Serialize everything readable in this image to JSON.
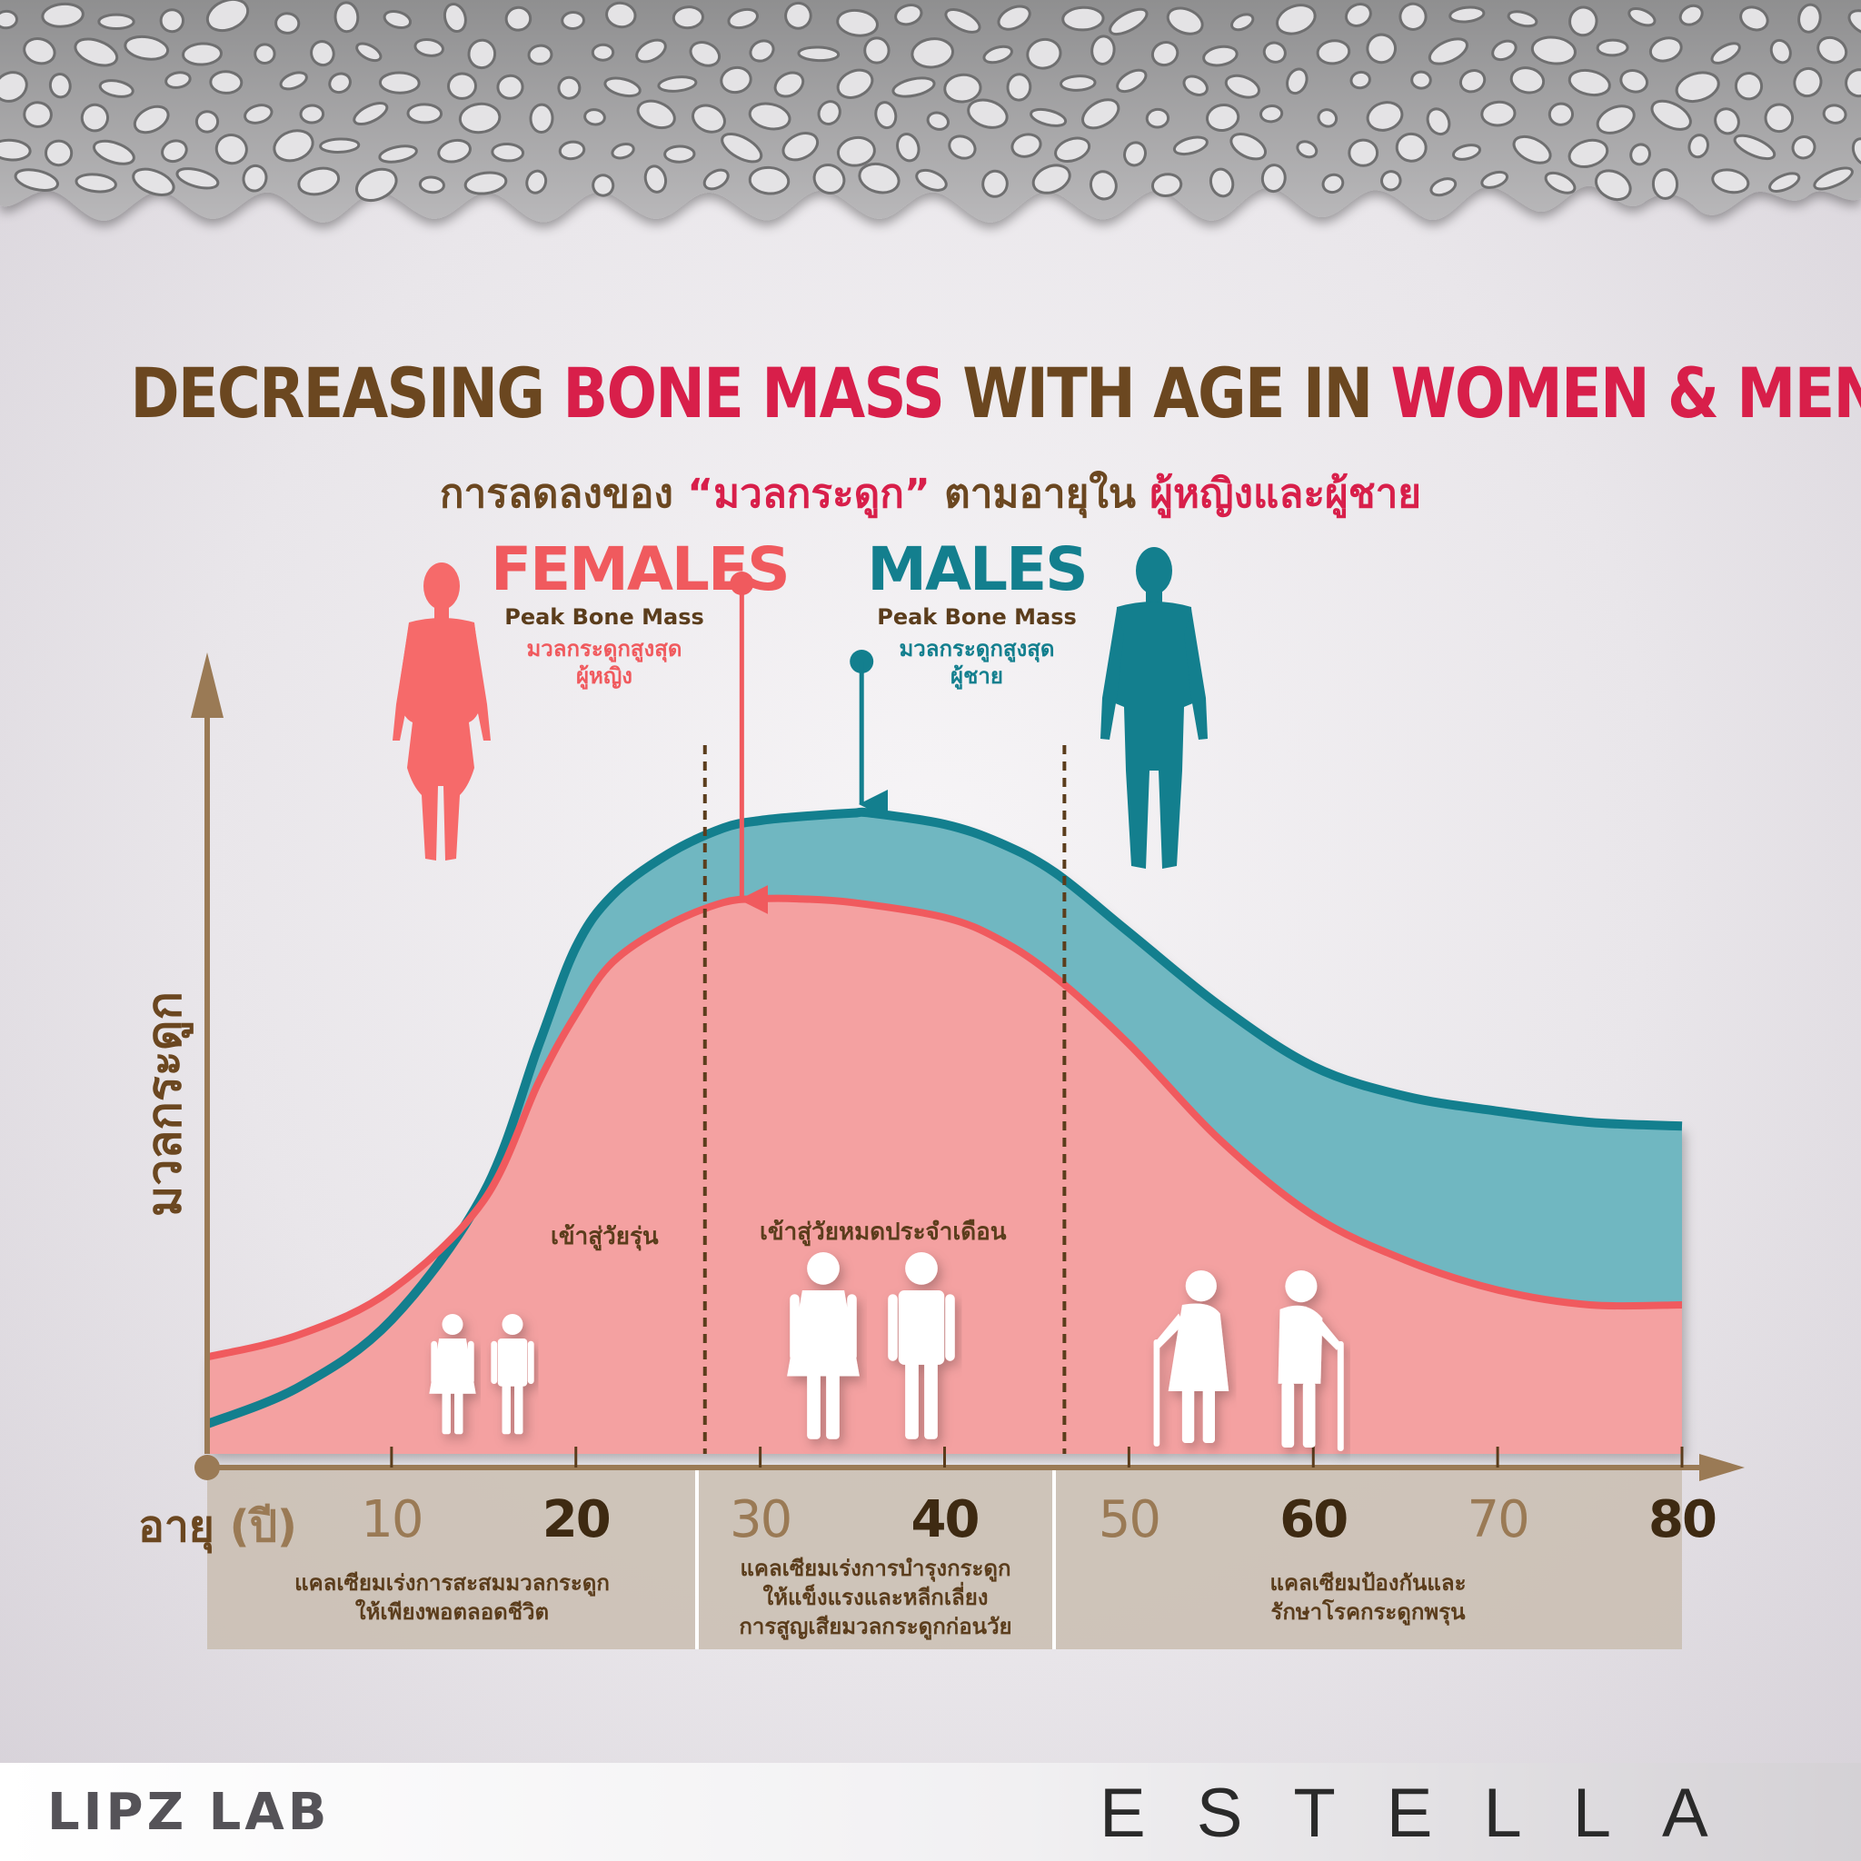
{
  "header": {
    "title_parts": [
      "DECREASING ",
      "BONE MASS",
      " WITH AGE IN ",
      "WOMEN & MEN"
    ],
    "subtitle_parts": [
      "การลดลงของ ",
      "“มวลกระดูก”",
      " ตามอายุใน ",
      "ผู้หญิงและผู้ชาย"
    ]
  },
  "females": {
    "heading": "FEMALES",
    "peak_label": "Peak Bone Mass",
    "thai_line1": "มวลกระดูกสูงสุด",
    "thai_line2": "ผู้หญิง"
  },
  "males": {
    "heading": "MALES",
    "peak_label": "Peak Bone Mass",
    "thai_line1": "มวลกระดูกสูงสุด",
    "thai_line2": "ผู้ชาย"
  },
  "stage_labels": {
    "puberty": "เข้าสู่วัยรุ่น",
    "menopause": "เข้าสู่วัยหมดประจำเดือน"
  },
  "bands": [
    {
      "line1": "แคลเซียมเร่งการสะสมมวลกระดูก",
      "line2": "ให้เพียงพอตลอดชีวิต"
    },
    {
      "line1": "แคลเซียมเร่งการบำรุงกระดูก",
      "line2": "ให้แข็งแรงและหลีกเลี่ยง",
      "line3": "การสูญเสียมวลกระดูกก่อนวัย"
    },
    {
      "line1": "แคลเซียมป้องกันและ",
      "line2": "รักษาโรคกระดูกพรุน"
    }
  ],
  "footer": {
    "left_brand": "LIPZ LAB",
    "right_brand": "ESTELLA"
  },
  "colors": {
    "title_brown": "#6b4720",
    "accent_red": "#d81f4a",
    "female_fill": "#f4a1a1",
    "female_line": "#f05a5e",
    "male_fill": "#6fb7c1",
    "male_line": "#137f8e",
    "axis_brown": "#9a7a55",
    "band_fill": "#c9bdb0"
  },
  "chart_data": {
    "type": "area",
    "xlabel": "อายุ",
    "xlabel_unit": "(ปี)",
    "ylabel": "มวลกระดูก",
    "xlim": [
      0,
      80
    ],
    "ylim": [
      0,
      100
    ],
    "x_ticks": [
      10,
      20,
      30,
      40,
      50,
      60,
      70,
      80
    ],
    "x_ticks_bold": [
      20,
      40,
      60,
      80
    ],
    "grid": false,
    "legend": "none",
    "markers": [
      {
        "x": 27,
        "label": "puberty"
      },
      {
        "x": 46.5,
        "label": "menopause"
      }
    ],
    "series": [
      {
        "name": "MALES",
        "x": [
          0,
          5,
          10,
          15,
          18,
          20,
          22,
          25,
          28,
          30,
          32,
          35,
          36,
          40,
          43,
          46,
          50,
          55,
          60,
          65,
          70,
          75,
          80
        ],
        "y": [
          4,
          9,
          18,
          35,
          55,
          68,
          75,
          80.5,
          84,
          85,
          85.5,
          86,
          86,
          84.5,
          82,
          78,
          70,
          60,
          52,
          48,
          46,
          44.5,
          44
        ]
      },
      {
        "name": "FEMALES",
        "x": [
          0,
          5,
          10,
          15,
          18,
          20,
          22,
          25,
          28,
          30,
          32,
          35,
          40,
          43,
          46,
          50,
          55,
          60,
          65,
          70,
          75,
          80
        ],
        "y": [
          13,
          16,
          22,
          34,
          50,
          59,
          66,
          71,
          74,
          74.5,
          74.5,
          74,
          72,
          69,
          64,
          55,
          42,
          32,
          26,
          22,
          20,
          20
        ]
      }
    ],
    "peaks": [
      {
        "series": "FEMALES",
        "x": 29
      },
      {
        "series": "MALES",
        "x": 35.5
      }
    ]
  }
}
